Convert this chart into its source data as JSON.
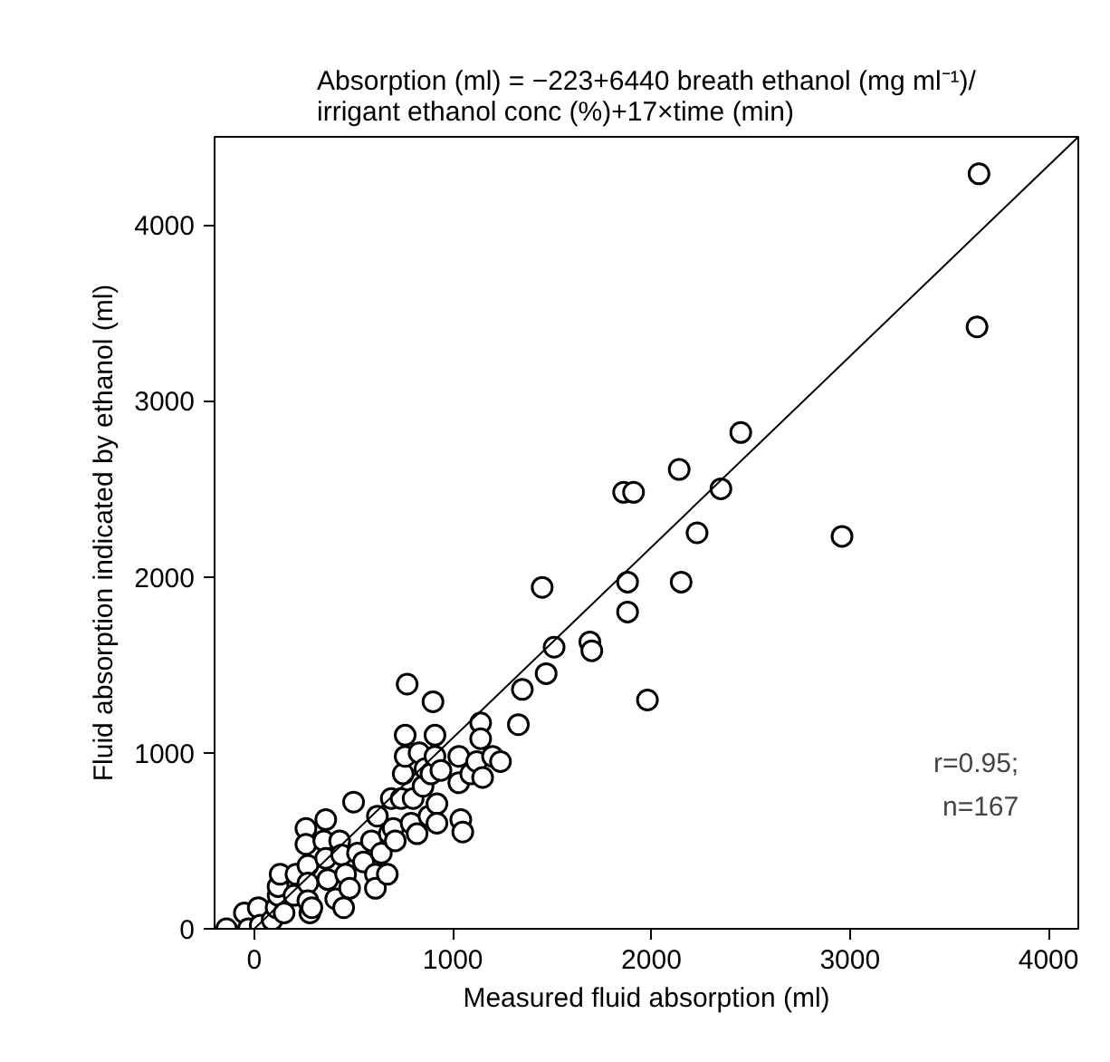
{
  "chart_data": {
    "type": "scatter",
    "title": "Absorption (ml) = −223+6440 breath ethanol (mg ml⁻¹)/\nirrigant ethanol conc (%)+17×time (min)",
    "xlabel": "Measured fluid absorption (ml)",
    "ylabel": "Fluid absorption indicated by ethanol (ml)",
    "xlim": [
      -200,
      4150
    ],
    "ylim": [
      0,
      4500
    ],
    "xticks": [
      0,
      1000,
      2000,
      3000,
      4000
    ],
    "yticks": [
      0,
      1000,
      2000,
      3000,
      4000
    ],
    "grid": false,
    "annotations": [
      "r=0.95;",
      "n=167"
    ],
    "series": [
      {
        "marker": "circle",
        "color": "#000000",
        "x": [
          -140,
          -50,
          -30,
          20,
          30,
          90,
          110,
          120,
          120,
          130,
          150,
          200,
          210,
          260,
          260,
          270,
          270,
          270,
          280,
          290,
          350,
          360,
          360,
          370,
          410,
          430,
          440,
          450,
          460,
          480,
          500,
          520,
          550,
          590,
          610,
          610,
          620,
          640,
          670,
          680,
          690,
          700,
          710,
          740,
          750,
          760,
          760,
          770,
          790,
          800,
          820,
          830,
          850,
          860,
          880,
          890,
          900,
          910,
          910,
          920,
          920,
          940,
          1030,
          1030,
          1040,
          1050,
          1090,
          1120,
          1140,
          1140,
          1150,
          1200,
          1240,
          1330,
          1350,
          1470,
          3650,
          3640,
          2450,
          2140,
          1860,
          1910,
          2350,
          2230,
          2960,
          1450,
          1880,
          2150,
          1880,
          1510,
          1690,
          1700,
          1980
        ],
        "values": [
          0,
          90,
          0,
          120,
          20,
          50,
          120,
          190,
          240,
          310,
          90,
          190,
          310,
          570,
          480,
          360,
          260,
          160,
          90,
          120,
          500,
          620,
          400,
          280,
          170,
          500,
          420,
          120,
          310,
          230,
          720,
          430,
          380,
          500,
          310,
          230,
          640,
          430,
          310,
          540,
          740,
          570,
          500,
          740,
          880,
          1100,
          980,
          1390,
          600,
          740,
          540,
          1000,
          810,
          910,
          640,
          880,
          1290,
          1100,
          980,
          710,
          600,
          900,
          980,
          830,
          620,
          550,
          880,
          950,
          1170,
          1080,
          860,
          980,
          950,
          1160,
          1360,
          1450,
          4290,
          3420,
          2820,
          2610,
          2480,
          2480,
          2500,
          2250,
          2230,
          1940,
          1970,
          1970,
          1800,
          1600,
          1630,
          1580,
          1300
        ]
      },
      {
        "type": "line",
        "marker": "none",
        "color": "#000000",
        "x": [
          0,
          4150
        ],
        "values": [
          0,
          4500
        ]
      }
    ]
  }
}
